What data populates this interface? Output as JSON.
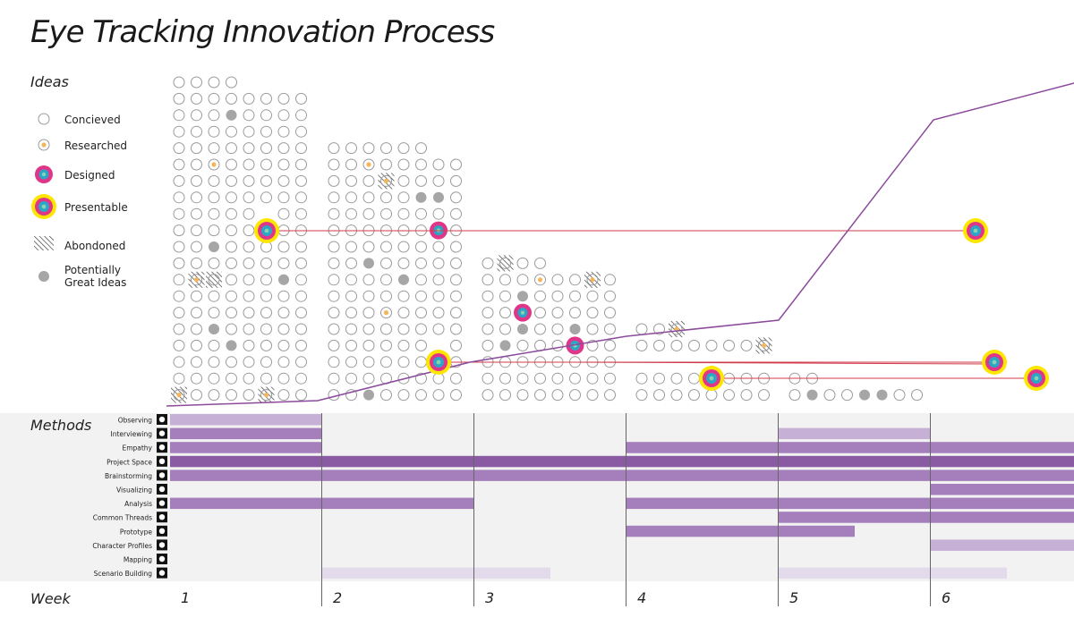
{
  "title": "Eye Tracking Innovation Process",
  "sections": {
    "ideas": "Ideas",
    "methods": "Methods",
    "week": "Week"
  },
  "legend": {
    "concieved": "Concieved",
    "researched": "Researched",
    "designed": "Designed",
    "presentable": "Presentable",
    "abandoned": "Abondoned",
    "potentially_great": "Potentially Great Ideas"
  },
  "colors": {
    "circle_stroke": "#9a9a9a",
    "researched": "#f5b55a",
    "designed_ring": "#e0368a",
    "presentable_ring": "#ffe600",
    "core_blue": "#2aa6c7",
    "potential": "#a6a6a6",
    "method_dark": "#8a5aa3",
    "method_mid": "#a47fbb",
    "method_light": "#c6b0d6",
    "method_lightest": "#e3daec",
    "trend_line": "#8b4a9c",
    "link_line": "#d03b4b",
    "methods_bg": "#f2f2f2"
  },
  "weeks": [
    "1",
    "2",
    "3",
    "4",
    "5",
    "6"
  ],
  "methods": [
    {
      "name": "Observing",
      "icon": "eye-icon",
      "bars": [
        {
          "start": 0.0,
          "end": 1.0,
          "tone": "light"
        }
      ]
    },
    {
      "name": "Interviewing",
      "icon": "speech-bubbles-icon",
      "bars": [
        {
          "start": 0.0,
          "end": 1.0,
          "tone": "mid"
        },
        {
          "start": 4.0,
          "end": 5.0,
          "tone": "light"
        }
      ]
    },
    {
      "name": "Empathy",
      "icon": "heart-icon",
      "bars": [
        {
          "start": 0.0,
          "end": 1.0,
          "tone": "mid"
        },
        {
          "start": 3.0,
          "end": 6.0,
          "tone": "mid"
        }
      ]
    },
    {
      "name": "Project Space",
      "icon": "house-icon",
      "bars": [
        {
          "start": 0.0,
          "end": 6.0,
          "tone": "dark"
        }
      ]
    },
    {
      "name": "Brainstorming",
      "icon": "lightning-icon",
      "bars": [
        {
          "start": 0.0,
          "end": 6.0,
          "tone": "mid"
        }
      ]
    },
    {
      "name": "Visualizing",
      "icon": "cube-icon",
      "bars": [
        {
          "start": 5.0,
          "end": 6.0,
          "tone": "mid"
        }
      ]
    },
    {
      "name": "Analysis",
      "icon": "magnifier-icon",
      "bars": [
        {
          "start": 0.0,
          "end": 2.0,
          "tone": "mid"
        },
        {
          "start": 3.0,
          "end": 6.0,
          "tone": "mid"
        }
      ]
    },
    {
      "name": "Common Threads",
      "icon": "threads-icon",
      "bars": [
        {
          "start": 4.0,
          "end": 6.0,
          "tone": "mid"
        }
      ]
    },
    {
      "name": "Prototype",
      "icon": "gears-icon",
      "bars": [
        {
          "start": 3.0,
          "end": 4.5,
          "tone": "mid"
        }
      ]
    },
    {
      "name": "Character Profiles",
      "icon": "profile-icon",
      "bars": [
        {
          "start": 5.0,
          "end": 6.0,
          "tone": "light"
        }
      ]
    },
    {
      "name": "Mapping",
      "icon": "map-arrows-icon",
      "bars": []
    },
    {
      "name": "Scenario Building",
      "icon": "blocks-icon",
      "bars": [
        {
          "start": 1.0,
          "end": 2.5,
          "tone": "lightest"
        },
        {
          "start": 4.0,
          "end": 5.5,
          "tone": "lightest"
        }
      ]
    }
  ]
}
